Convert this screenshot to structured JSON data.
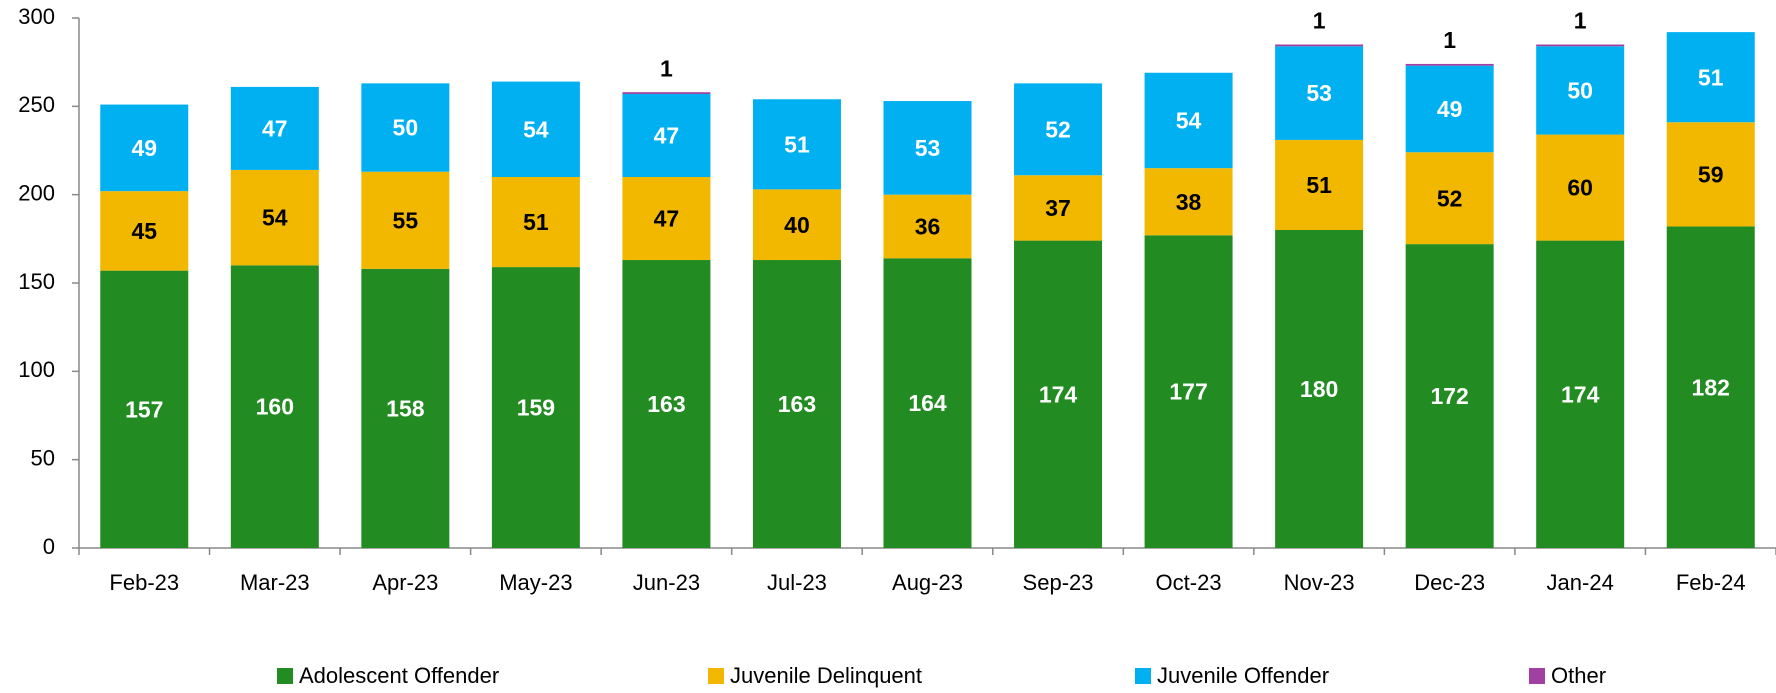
{
  "chart_data": {
    "type": "stacked_bar",
    "categories": [
      "Feb-23",
      "Mar-23",
      "Apr-23",
      "May-23",
      "Jun-23",
      "Jul-23",
      "Aug-23",
      "Sep-23",
      "Oct-23",
      "Nov-23",
      "Dec-23",
      "Jan-24",
      "Feb-24"
    ],
    "series": [
      {
        "name": "Adolescent Offender",
        "color": "#228b22",
        "label_color": "#ffffff",
        "values": [
          157,
          160,
          158,
          159,
          163,
          163,
          164,
          174,
          177,
          180,
          172,
          174,
          182
        ]
      },
      {
        "name": "Juvenile Delinquent",
        "color": "#f2b800",
        "label_color": "#000000",
        "values": [
          45,
          54,
          55,
          51,
          47,
          40,
          36,
          37,
          38,
          51,
          52,
          60,
          59
        ]
      },
      {
        "name": "Juvenile Offender",
        "color": "#00b0f0",
        "label_color": "#ffffff",
        "values": [
          49,
          47,
          50,
          54,
          47,
          51,
          53,
          52,
          54,
          53,
          49,
          50,
          51
        ]
      },
      {
        "name": "Other",
        "color": "#a040a0",
        "label_color": "#000000",
        "values": [
          null,
          null,
          null,
          null,
          1,
          null,
          null,
          null,
          null,
          1,
          1,
          1,
          null
        ]
      }
    ],
    "ylim": [
      0,
      300
    ],
    "yticks": [
      0,
      50,
      100,
      150,
      200,
      250,
      300
    ],
    "legend": "bottom"
  }
}
